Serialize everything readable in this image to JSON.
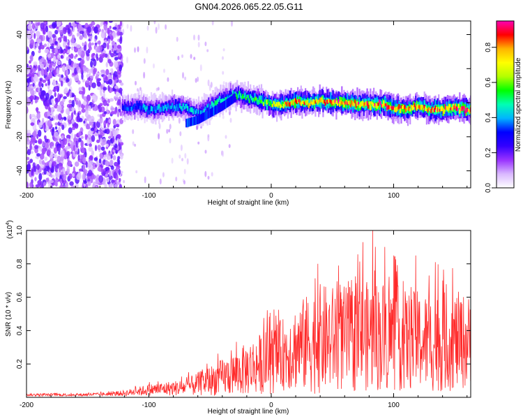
{
  "title": "GN04.2026.065.22.05.G11",
  "chart_data": [
    {
      "type": "heatmap",
      "xlabel": "Height of straight line (km)",
      "ylabel": "Frequency (Hz)",
      "xlim": [
        -200,
        163
      ],
      "ylim": [
        -50,
        48
      ],
      "xticks": [
        -200,
        -100,
        0,
        100
      ],
      "yticks": [
        40,
        20,
        0,
        -20,
        -40
      ],
      "xtick_labels": [
        "-200",
        "-100",
        "0",
        "100"
      ],
      "ytick_labels": [
        "40",
        "20",
        "0",
        "-20",
        "-40"
      ],
      "colorbar": {
        "label": "Normalized spectral amplitude",
        "range": [
          0,
          0.95
        ],
        "ticks": [
          0.0,
          0.2,
          0.4,
          0.6,
          0.8
        ],
        "tick_labels": [
          "0.0",
          "0.2",
          "0.4",
          "0.6",
          "0.8"
        ],
        "colors": [
          "#ffffff",
          "#d9b8ff",
          "#9933ff",
          "#3300ff",
          "#0000ff",
          "#00b4ff",
          "#00ffb4",
          "#00ff00",
          "#b4ff00",
          "#ffff00",
          "#ffb400",
          "#ff0000",
          "#ff00b4"
        ]
      },
      "noise_region_x": [
        -200,
        -122
      ],
      "ridge": {
        "description_points_x": [
          -122,
          -110,
          -100,
          -90,
          -80,
          -70,
          -60,
          -50,
          -40,
          -30,
          -20,
          -10,
          0,
          10,
          20,
          30,
          40,
          50,
          60,
          70,
          80,
          90,
          100,
          110,
          120,
          130,
          140,
          150,
          160
        ],
        "center_hz": [
          -3,
          -2,
          -4,
          -3,
          -2,
          -3,
          -6,
          -2,
          2,
          5,
          3,
          1,
          -1,
          -1,
          1,
          0,
          1,
          0,
          0,
          -1,
          -1,
          -1,
          -3,
          -4,
          -2,
          -4,
          -4,
          -3,
          -4
        ],
        "peak_amplitude": [
          0.35,
          0.4,
          0.4,
          0.42,
          0.45,
          0.45,
          0.4,
          0.45,
          0.5,
          0.5,
          0.55,
          0.6,
          0.7,
          0.75,
          0.85,
          0.8,
          0.85,
          0.9,
          0.85,
          0.85,
          0.9,
          0.9,
          0.85,
          0.8,
          0.85,
          0.85,
          0.85,
          0.9,
          0.9
        ]
      },
      "secondary_branch": {
        "x": [
          -70,
          -60,
          -50,
          -40,
          -30
        ],
        "center_hz": [
          -12,
          -10,
          -6,
          -2,
          3
        ]
      }
    },
    {
      "type": "line",
      "xlabel": "Height of straight line (km)",
      "ylabel": "SNR (10 * v/v)",
      "scale_label": "(x10",
      "scale_exponent": "4",
      "scale_suffix": ")",
      "xlim": [
        -200,
        163
      ],
      "ylim": [
        0,
        1.0
      ],
      "xticks": [
        -200,
        -100,
        0,
        100
      ],
      "yticks": [
        0.2,
        0.4,
        0.6,
        0.8,
        1.0
      ],
      "xtick_labels": [
        "-200",
        "-100",
        "0",
        "100"
      ],
      "ytick_labels": [
        "0.2",
        "0.4",
        "0.6",
        "0.8",
        "1.0"
      ],
      "series": [
        {
          "name": "SNR",
          "color": "#ff2a2a",
          "envelope_x": [
            -200,
            -180,
            -160,
            -140,
            -130,
            -120,
            -110,
            -100,
            -90,
            -80,
            -70,
            -60,
            -50,
            -40,
            -30,
            -20,
            -10,
            0,
            10,
            20,
            30,
            40,
            50,
            60,
            70,
            80,
            90,
            100,
            110,
            120,
            130,
            140,
            150,
            163
          ],
          "envelope_mean": [
            0.015,
            0.015,
            0.015,
            0.018,
            0.02,
            0.025,
            0.035,
            0.045,
            0.05,
            0.055,
            0.06,
            0.08,
            0.1,
            0.12,
            0.14,
            0.17,
            0.2,
            0.22,
            0.26,
            0.3,
            0.32,
            0.35,
            0.35,
            0.35,
            0.35,
            0.37,
            0.37,
            0.36,
            0.34,
            0.34,
            0.33,
            0.33,
            0.34,
            0.33
          ],
          "envelope_amp": [
            0.008,
            0.008,
            0.008,
            0.01,
            0.012,
            0.018,
            0.025,
            0.035,
            0.04,
            0.045,
            0.05,
            0.07,
            0.09,
            0.11,
            0.13,
            0.16,
            0.18,
            0.2,
            0.22,
            0.26,
            0.3,
            0.33,
            0.32,
            0.32,
            0.32,
            0.33,
            0.34,
            0.33,
            0.3,
            0.3,
            0.3,
            0.3,
            0.3,
            0.28
          ],
          "peaks": [
            [
              28,
              0.52
            ],
            [
              38,
              0.8
            ],
            [
              55,
              0.79
            ],
            [
              75,
              0.93
            ],
            [
              83,
              1.0
            ],
            [
              100,
              0.85
            ],
            [
              118,
              0.85
            ],
            [
              134,
              0.81
            ],
            [
              140,
              0.7
            ]
          ]
        }
      ]
    }
  ]
}
